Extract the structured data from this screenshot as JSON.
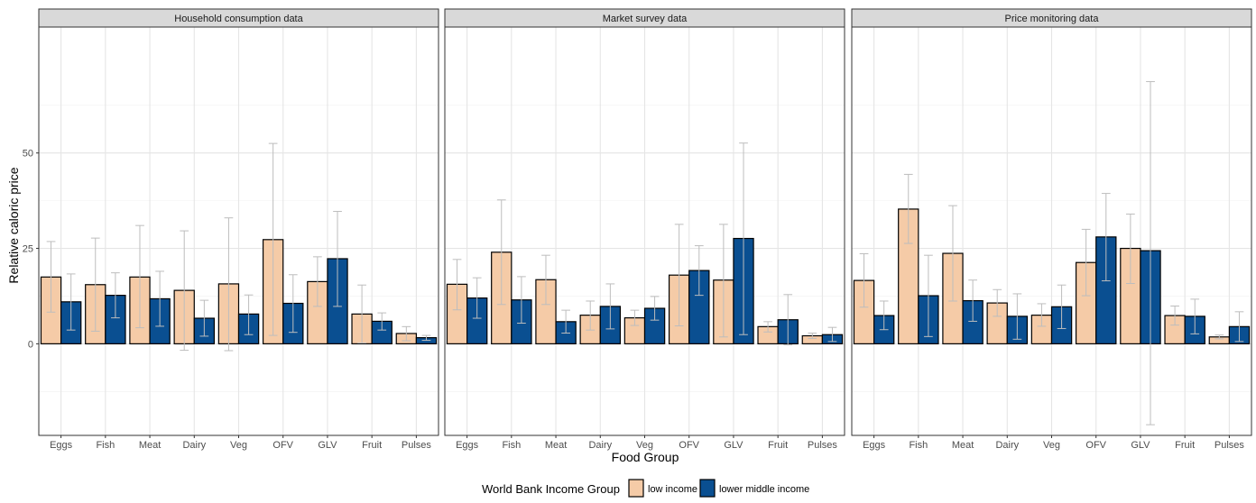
{
  "chart_data": {
    "type": "bar",
    "xlabel": "Food Group",
    "ylabel": "Relative caloric price",
    "ylim": [
      -24,
      83
    ],
    "yticks": [
      0,
      25,
      50
    ],
    "categories": [
      "Eggs",
      "Fish",
      "Meat",
      "Dairy",
      "Veg",
      "OFV",
      "GLV",
      "Fruit",
      "Pulses"
    ],
    "legend": {
      "title": "World Bank Income Group",
      "position": "bottom",
      "entries": [
        "low income",
        "lower middle income"
      ]
    },
    "colors": {
      "low income": "#f5cba7",
      "lower middle income": "#0a4f91",
      "error_bar": "#bdbdbd"
    },
    "grid": true,
    "panels": [
      {
        "title": "Household consumption data",
        "series": [
          {
            "name": "low income",
            "values": [
              17.5,
              15.5,
              17.5,
              14,
              15.7,
              27.3,
              16.3,
              7.8,
              2.7
            ],
            "lower": [
              8.3,
              3.3,
              4.2,
              -1.7,
              -1.8,
              2.2,
              9.8,
              0.2,
              0.8
            ],
            "upper": [
              26.8,
              27.7,
              31,
              29.6,
              33,
              52.5,
              22.8,
              15.4,
              4.5
            ]
          },
          {
            "name": "lower middle income",
            "values": [
              11,
              12.7,
              11.8,
              6.7,
              7.8,
              10.6,
              22.3,
              5.9,
              1.6
            ],
            "lower": [
              3.6,
              6.8,
              4.6,
              2,
              2.4,
              3,
              9.8,
              3.6,
              0.9
            ],
            "upper": [
              18.3,
              18.6,
              19,
              11.4,
              12.8,
              18.1,
              34.7,
              8.1,
              2.2
            ]
          }
        ]
      },
      {
        "title": "Market survey data",
        "series": [
          {
            "name": "low income",
            "values": [
              15.6,
              24,
              16.8,
              7.5,
              6.8,
              18,
              16.7,
              4.5,
              2.1
            ],
            "lower": [
              8.9,
              10.3,
              10.3,
              3.6,
              4.8,
              4.7,
              1.8,
              3.1,
              1.4
            ],
            "upper": [
              22.1,
              37.7,
              23.2,
              11.2,
              8.8,
              31.3,
              31.3,
              5.8,
              2.8
            ]
          },
          {
            "name": "lower middle income",
            "values": [
              12,
              11.5,
              5.8,
              9.8,
              9.3,
              19.2,
              27.6,
              6.3,
              2.4
            ],
            "lower": [
              6.7,
              5.4,
              2.8,
              3.9,
              6.2,
              12.7,
              2.4,
              -0.3,
              0.6
            ],
            "upper": [
              17.3,
              17.6,
              8.8,
              15.7,
              12.4,
              25.7,
              52.6,
              12.9,
              4.3
            ]
          }
        ]
      },
      {
        "title": "Price monitoring data",
        "series": [
          {
            "name": "low income",
            "values": [
              16.6,
              35.3,
              23.7,
              10.7,
              7.5,
              21.3,
              25,
              7.4,
              1.8
            ],
            "lower": [
              9.6,
              26.3,
              11.2,
              7.2,
              4.6,
              12.6,
              15.8,
              4.9,
              1.3
            ],
            "upper": [
              23.6,
              44.4,
              36.2,
              14.2,
              10.5,
              30,
              34,
              9.9,
              2.3
            ]
          },
          {
            "name": "lower middle income",
            "values": [
              7.4,
              12.6,
              11.3,
              7.2,
              9.7,
              28,
              24.4,
              7.2,
              4.5
            ],
            "lower": [
              3.7,
              1.9,
              5.9,
              1.2,
              4,
              16.5,
              -21.2,
              2.6,
              0.6
            ],
            "upper": [
              11.2,
              23.2,
              16.7,
              13.1,
              15.4,
              39.4,
              68.7,
              11.7,
              8.4
            ]
          }
        ]
      }
    ]
  }
}
